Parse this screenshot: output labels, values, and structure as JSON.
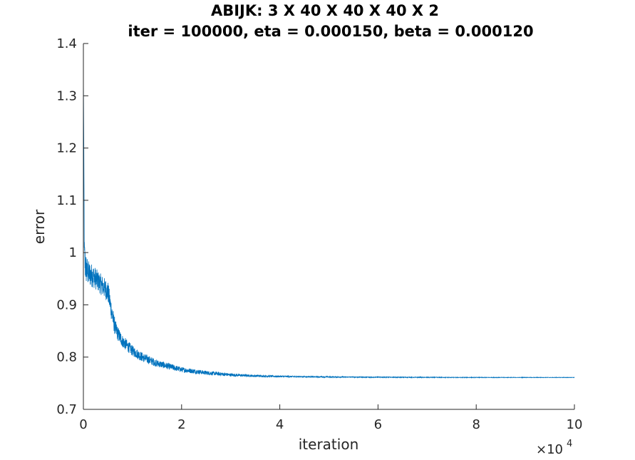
{
  "chart_data": {
    "type": "line",
    "title": "ABIJK: 3 X 40 X 40 X 40 X 2",
    "subtitle": "iter = 100000, eta = 0.000150, beta = 0.000120",
    "xlabel": "iteration",
    "ylabel": "error",
    "x_exponent_label": "×10",
    "x_exponent_power": "4",
    "xlim": [
      0,
      10
    ],
    "ylim": [
      0.7,
      1.4
    ],
    "x_ticks": [
      "0",
      "2",
      "4",
      "6",
      "8",
      "10"
    ],
    "y_ticks": [
      "0.7",
      "0.8",
      "0.9",
      "1",
      "1.1",
      "1.2",
      "1.3",
      "1.4"
    ],
    "grid": false,
    "line_color": "#0072bd",
    "series": [
      {
        "x": [
          0,
          0.02,
          0.05,
          0.1,
          0.2,
          0.3,
          0.4,
          0.5,
          0.55,
          0.6,
          0.65,
          0.7,
          0.8,
          1.0,
          1.2,
          1.5,
          2.0,
          2.5,
          3.0,
          3.5,
          4.0,
          5.0,
          6.0,
          7.0,
          8.0,
          9.0,
          10.0
        ],
        "y_mean": [
          1.35,
          0.99,
          0.97,
          0.96,
          0.955,
          0.945,
          0.935,
          0.925,
          0.9,
          0.875,
          0.855,
          0.845,
          0.83,
          0.812,
          0.8,
          0.788,
          0.776,
          0.77,
          0.766,
          0.764,
          0.763,
          0.762,
          0.7615,
          0.7612,
          0.761,
          0.761,
          0.761
        ],
        "y_spread": [
          0.0,
          0.04,
          0.03,
          0.025,
          0.022,
          0.02,
          0.02,
          0.02,
          0.02,
          0.018,
          0.016,
          0.014,
          0.012,
          0.01,
          0.009,
          0.007,
          0.005,
          0.004,
          0.003,
          0.002,
          0.0015,
          0.001,
          0.0008,
          0.0006,
          0.0005,
          0.0004,
          0.0004
        ]
      }
    ]
  }
}
